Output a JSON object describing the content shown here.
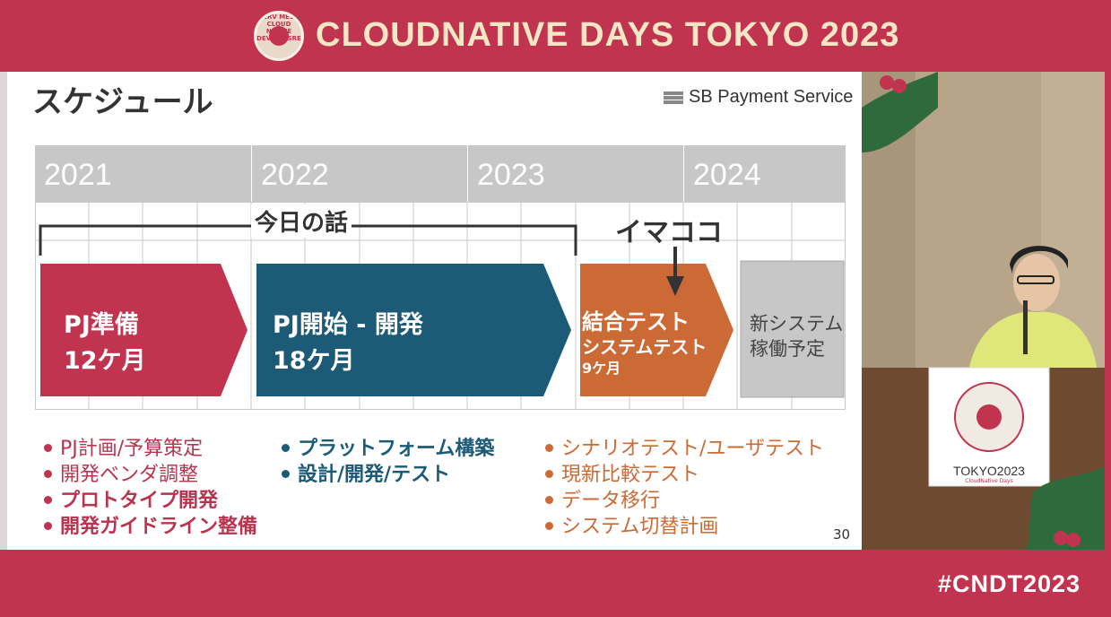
{
  "header": {
    "brand": "CLOUDNATIVE DAYS TOKYO 2023",
    "logo_text": "SERV MESH CLOUD NATIVE DEVOPS SRE"
  },
  "slide": {
    "title": "スケジュール",
    "company": "SB Payment Service",
    "years": [
      "2021",
      "2022",
      "2023",
      "2024"
    ],
    "bracket_label": "今日の話",
    "now_label": "イマココ",
    "phases": [
      {
        "line1": "PJ準備",
        "line2": "12ケ月",
        "color": "#c0344f"
      },
      {
        "line1": "PJ開始 - 開発",
        "line2": "18ケ月",
        "color": "#1b5b77"
      },
      {
        "line1": "結合テスト",
        "line2": "システムテスト",
        "line3": "9ケ月",
        "color": "#cc6a35"
      },
      {
        "line1": "新システム",
        "line2": "稼働予定",
        "color": "#c7c7c7"
      }
    ],
    "bullets_col1": [
      "PJ計画/予算策定",
      "開発ベンダ調整",
      "プロトタイプ開発",
      "開発ガイドライン整備"
    ],
    "bullets_col2": [
      "プラットフォーム構築",
      "設計/開発/テスト"
    ],
    "bullets_col3": [
      "シナリオテスト/ユーザテスト",
      "現新比較テスト",
      "データ移行",
      "システム切替計画"
    ],
    "page_number": "30"
  },
  "video": {
    "podium_text": "TOKYO2023",
    "podium_sub": "CloudNative Days"
  },
  "footer": {
    "hashtag": "#CNDT2023"
  },
  "colors": {
    "brand": "#c0344f",
    "brand_text": "#f3e7c6",
    "phase1": "#c0344f",
    "phase2": "#1b5b77",
    "phase3": "#cc6a35",
    "phase4": "#c7c7c7"
  }
}
